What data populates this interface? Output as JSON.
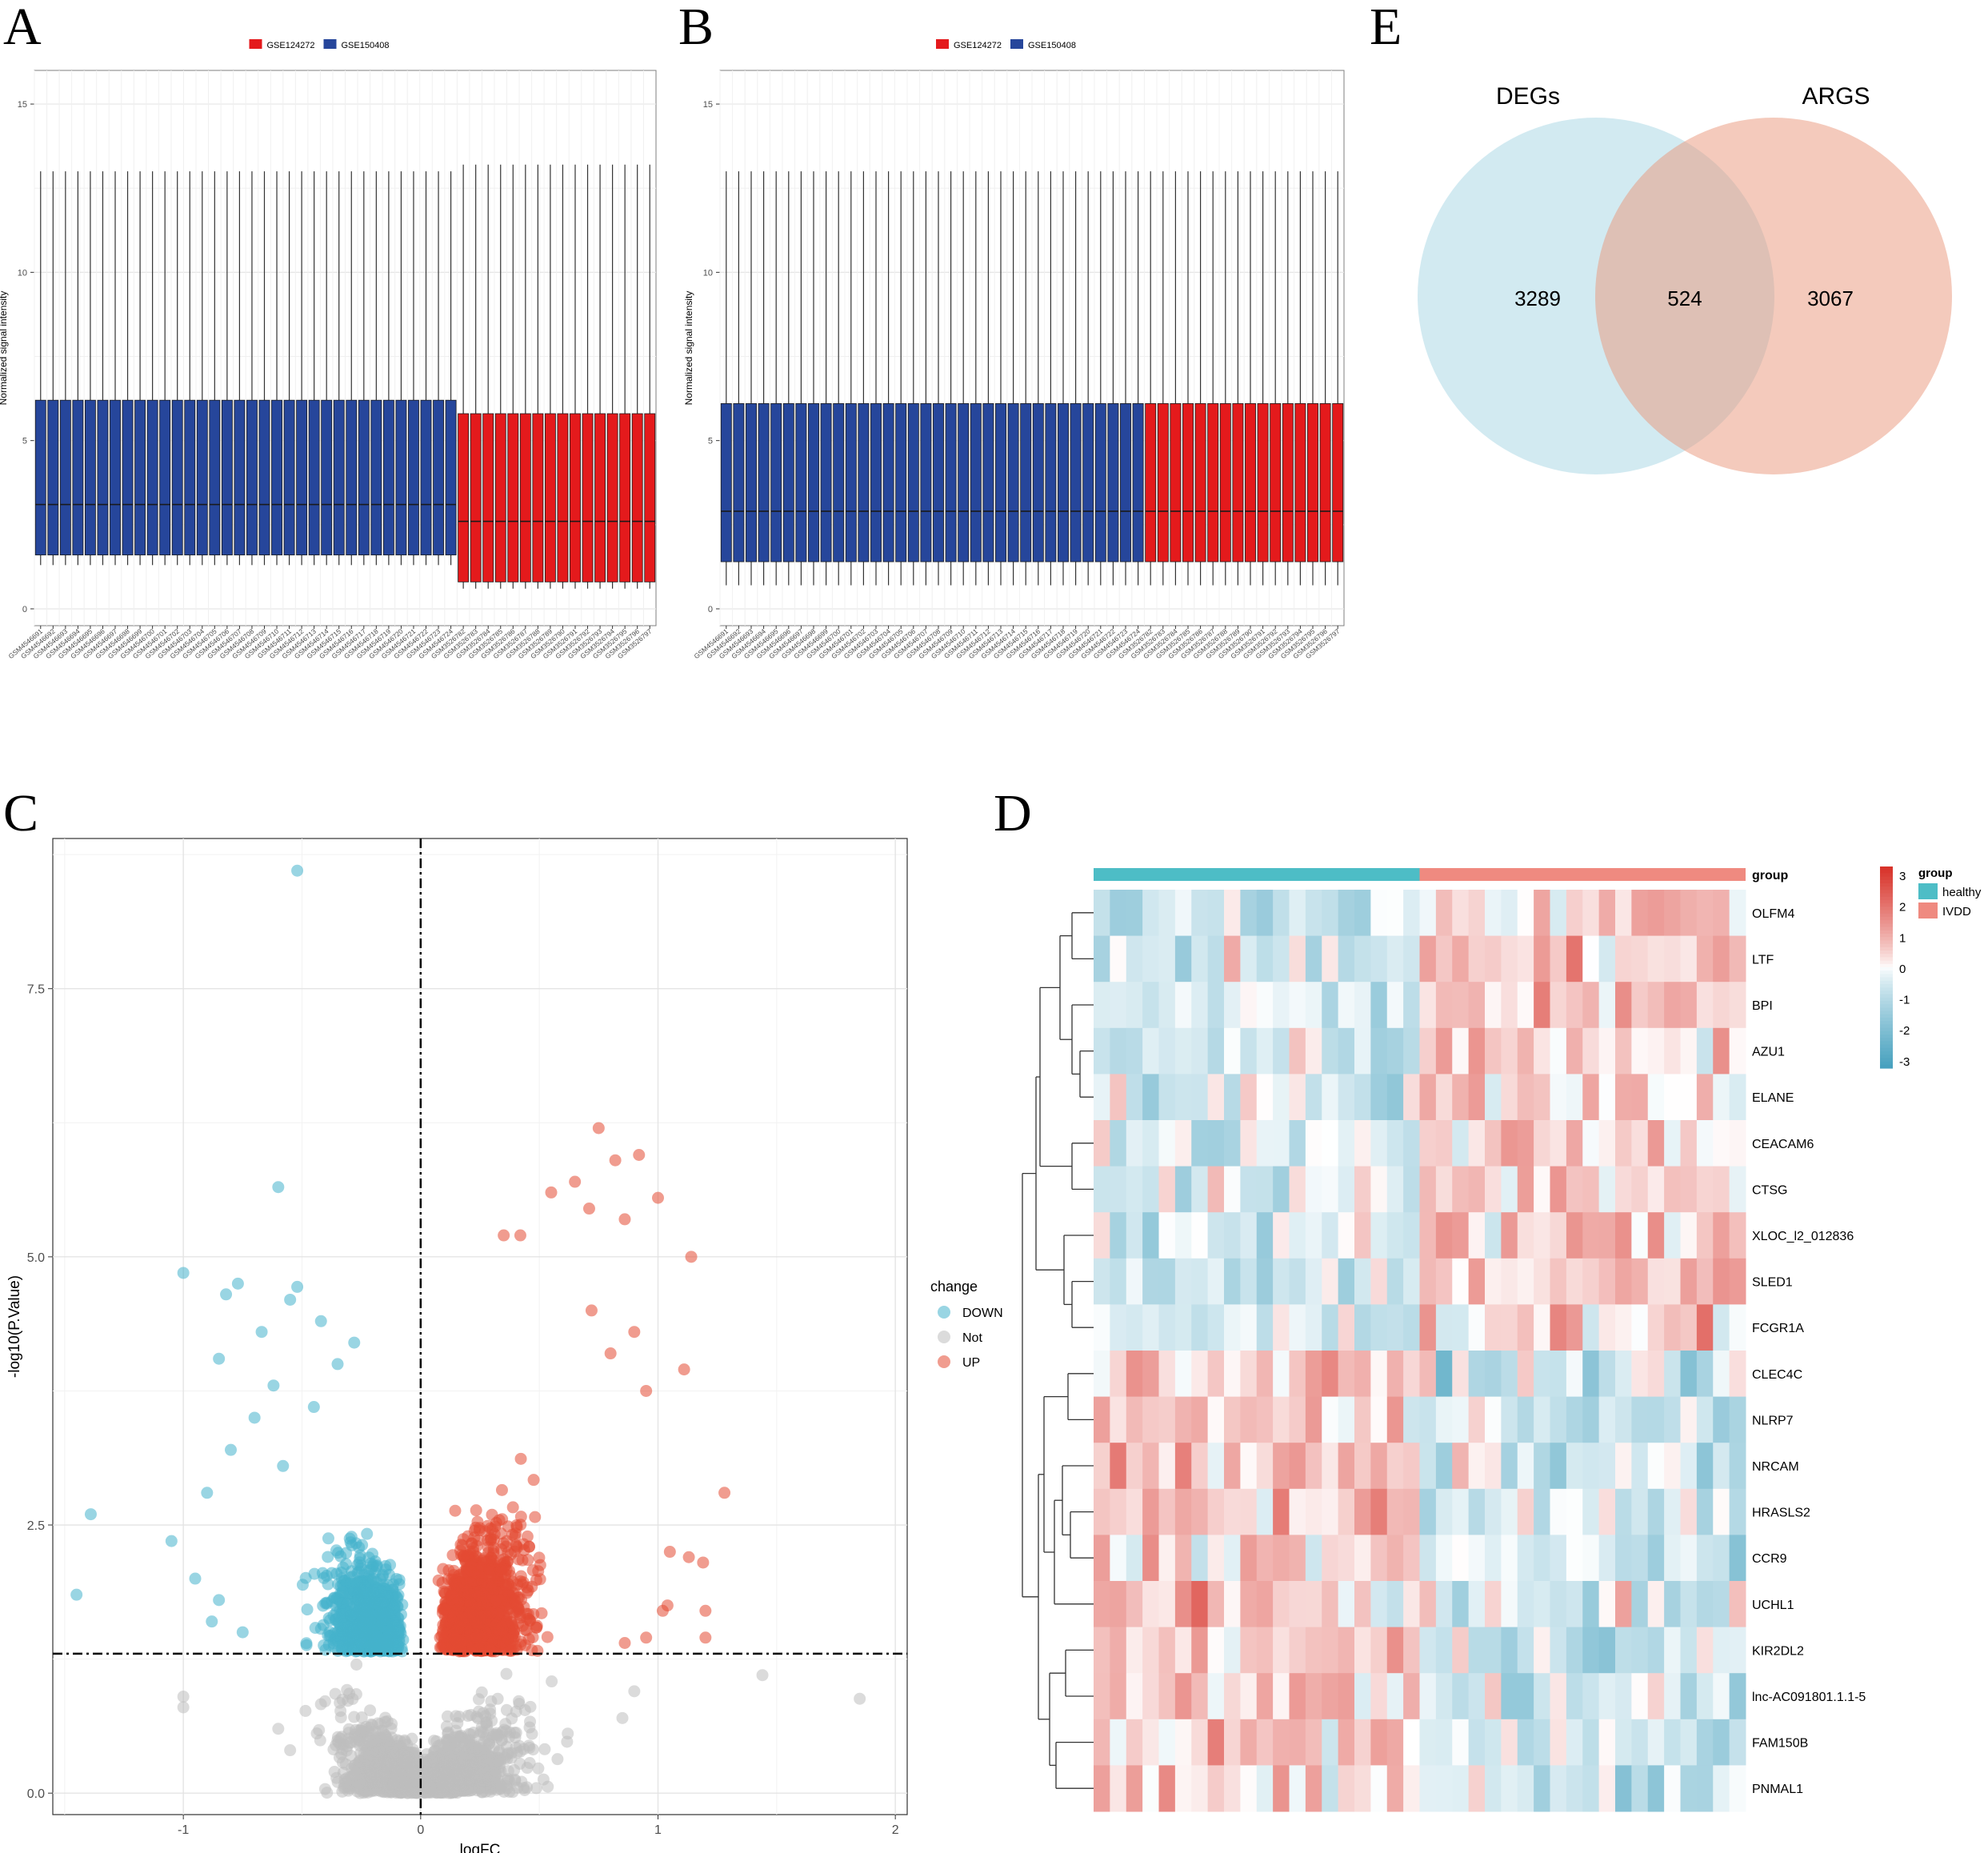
{
  "panels": {
    "A": "A",
    "B": "B",
    "C": "C",
    "D": "D",
    "E": "E"
  },
  "colors": {
    "gse124272": "#e41a1c",
    "gse150408": "#26469b",
    "down": "#45b3cc",
    "not": "#bebebe",
    "up": "#e34a33",
    "healthy": "#4dbdc6",
    "ivdd": "#ef8a80",
    "degs": "#4cb8c9",
    "args": "#e35a3f"
  },
  "chart_data": [
    {
      "id": "A",
      "type": "box",
      "title": "",
      "ylabel": "Normalized signal intensity",
      "ylim": [
        -0.5,
        16
      ],
      "yticks": [
        0,
        5,
        10,
        15
      ],
      "legend": [
        "GSE124272",
        "GSE150408"
      ],
      "legend_position": "top",
      "samples": [
        "GSM4546691",
        "GSM4546692",
        "GSM4546693",
        "GSM4546694",
        "GSM4546695",
        "GSM4546696",
        "GSM4546697",
        "GSM4546698",
        "GSM4546699",
        "GSM4546700",
        "GSM4546701",
        "GSM4546702",
        "GSM4546703",
        "GSM4546704",
        "GSM4546705",
        "GSM4546706",
        "GSM4546707",
        "GSM4546708",
        "GSM4546709",
        "GSM4546710",
        "GSM4546711",
        "GSM4546712",
        "GSM4546713",
        "GSM4546714",
        "GSM4546715",
        "GSM4546716",
        "GSM4546717",
        "GSM4546718",
        "GSM4546719",
        "GSM4546720",
        "GSM4546721",
        "GSM4546722",
        "GSM4546723",
        "GSM4546724",
        "GSM3526782",
        "GSM3526783",
        "GSM3526784",
        "GSM3526785",
        "GSM3526786",
        "GSM3526787",
        "GSM3526788",
        "GSM3526789",
        "GSM3526790",
        "GSM3526791",
        "GSM3526792",
        "GSM3526793",
        "GSM3526794",
        "GSM3526795",
        "GSM3526796",
        "GSM3526797"
      ],
      "groups": [
        {
          "name": "GSE150408",
          "count": 34,
          "min": 1.3,
          "q1": 1.6,
          "median": 3.1,
          "q3": 6.2,
          "max": 13.0
        },
        {
          "name": "GSE124272",
          "count": 16,
          "min": 0.6,
          "q1": 0.8,
          "median": 2.6,
          "q3": 5.8,
          "max": 13.2
        }
      ]
    },
    {
      "id": "B",
      "type": "box",
      "title": "",
      "ylabel": "Normalized signal intensity",
      "ylim": [
        -0.5,
        16
      ],
      "yticks": [
        0,
        5,
        10,
        15
      ],
      "legend": [
        "GSE124272",
        "GSE150408"
      ],
      "legend_position": "top",
      "samples": [
        "GSM4546691",
        "GSM4546692",
        "GSM4546693",
        "GSM4546694",
        "GSM4546695",
        "GSM4546696",
        "GSM4546697",
        "GSM4546698",
        "GSM4546699",
        "GSM4546700",
        "GSM4546701",
        "GSM4546702",
        "GSM4546703",
        "GSM4546704",
        "GSM4546705",
        "GSM4546706",
        "GSM4546707",
        "GSM4546708",
        "GSM4546709",
        "GSM4546710",
        "GSM4546711",
        "GSM4546712",
        "GSM4546713",
        "GSM4546714",
        "GSM4546715",
        "GSM4546716",
        "GSM4546717",
        "GSM4546718",
        "GSM4546719",
        "GSM4546720",
        "GSM4546721",
        "GSM4546722",
        "GSM4546723",
        "GSM4546724",
        "GSM3526782",
        "GSM3526783",
        "GSM3526784",
        "GSM3526785",
        "GSM3526786",
        "GSM3526787",
        "GSM3526788",
        "GSM3526789",
        "GSM3526790",
        "GSM3526791",
        "GSM3526792",
        "GSM3526793",
        "GSM3526794",
        "GSM3526795",
        "GSM3526796",
        "GSM3526797"
      ],
      "groups": [
        {
          "name": "GSE150408",
          "count": 34,
          "min": 0.7,
          "q1": 1.4,
          "median": 2.9,
          "q3": 6.1,
          "max": 13.0
        },
        {
          "name": "GSE124272",
          "count": 16,
          "min": 0.7,
          "q1": 1.4,
          "median": 2.9,
          "q3": 6.1,
          "max": 13.0
        }
      ]
    },
    {
      "id": "C",
      "type": "scatter",
      "title": "",
      "xlabel": "logFC",
      "ylabel": "-log10(P.Value)",
      "xlim": [
        -1.55,
        2.05
      ],
      "ylim": [
        -0.2,
        8.9
      ],
      "xticks": [
        -1,
        0,
        1,
        2
      ],
      "yticks": [
        0.0,
        2.5,
        5.0,
        7.5
      ],
      "ytick_labels": [
        "0.0",
        "2.5",
        "5.0",
        "7.5"
      ],
      "pvalue_cutoff": 1.3,
      "legend_title": "change",
      "legend_entries": [
        "DOWN",
        "Not",
        "UP"
      ],
      "legend_position": "right",
      "highlight_points": {
        "DOWN": [
          [
            -0.52,
            8.6
          ],
          [
            -0.6,
            5.65
          ],
          [
            -1.0,
            4.85
          ],
          [
            -0.77,
            4.75
          ],
          [
            -0.52,
            4.72
          ],
          [
            -0.82,
            4.65
          ],
          [
            -0.55,
            4.6
          ],
          [
            -0.42,
            4.4
          ],
          [
            -0.67,
            4.3
          ],
          [
            -0.28,
            4.2
          ],
          [
            -0.85,
            4.05
          ],
          [
            -1.39,
            2.6
          ],
          [
            -1.05,
            2.35
          ],
          [
            -1.45,
            1.85
          ],
          [
            -0.9,
            2.8
          ],
          [
            -0.95,
            2.0
          ],
          [
            -0.85,
            1.8
          ],
          [
            -0.75,
            1.5
          ],
          [
            -0.7,
            3.5
          ],
          [
            -0.62,
            3.8
          ],
          [
            -0.35,
            4.0
          ],
          [
            -0.8,
            3.2
          ],
          [
            -0.88,
            1.6
          ],
          [
            -0.58,
            3.05
          ],
          [
            -0.45,
            3.6
          ]
        ],
        "UP": [
          [
            0.75,
            6.2
          ],
          [
            0.92,
            5.95
          ],
          [
            0.82,
            5.9
          ],
          [
            1.0,
            5.55
          ],
          [
            0.65,
            5.7
          ],
          [
            0.55,
            5.6
          ],
          [
            0.71,
            5.45
          ],
          [
            0.86,
            5.35
          ],
          [
            0.35,
            5.2
          ],
          [
            0.42,
            5.2
          ],
          [
            1.14,
            5.0
          ],
          [
            1.11,
            3.95
          ],
          [
            0.9,
            4.3
          ],
          [
            0.95,
            3.75
          ],
          [
            1.28,
            2.8
          ],
          [
            1.05,
            2.25
          ],
          [
            1.13,
            2.2
          ],
          [
            1.19,
            2.15
          ],
          [
            1.02,
            1.7
          ],
          [
            1.04,
            1.75
          ],
          [
            1.2,
            1.7
          ],
          [
            0.86,
            1.4
          ],
          [
            0.95,
            1.45
          ],
          [
            1.2,
            1.45
          ],
          [
            0.72,
            4.5
          ],
          [
            0.8,
            4.1
          ]
        ],
        "Not": [
          [
            1.85,
            0.88
          ],
          [
            1.44,
            1.1
          ],
          [
            -1.0,
            0.9
          ],
          [
            -1.0,
            0.8
          ],
          [
            0.85,
            0.7
          ],
          [
            0.9,
            0.95
          ],
          [
            -0.6,
            0.6
          ],
          [
            -0.55,
            0.4
          ]
        ]
      },
      "bulk_regions": {
        "DOWN": {
          "x": [
            -0.75,
            -0.06
          ],
          "y": [
            1.3,
            3.4
          ]
        },
        "UP": {
          "x": [
            0.06,
            0.85
          ],
          "y": [
            1.3,
            4.2
          ]
        },
        "Not": {
          "x": [
            -0.7,
            0.85
          ],
          "y": [
            0.0,
            1.3
          ]
        }
      }
    },
    {
      "id": "D",
      "type": "heatmap",
      "title": "",
      "annotation_label": "group",
      "legend_title": "group",
      "legend_entries": [
        "healthy",
        "IVDD"
      ],
      "colorbar_ticks": [
        "3",
        "2",
        "1",
        "0",
        "-1",
        "-2",
        "-3"
      ],
      "value_range": [
        -3,
        3
      ],
      "n_columns": 40,
      "n_healthy": 20,
      "rows": [
        "OLFM4",
        "LTF",
        "BPI",
        "AZU1",
        "ELANE",
        "CEACAM6",
        "CTSG",
        "XLOC_l2_012836",
        "SLED1",
        "FCGR1A",
        "CLEC4C",
        "NLRP7",
        "NRCAM",
        "HRASLS2",
        "CCR9",
        "UCHL1",
        "KIR2DL2",
        "lnc-AC091801.1.1-5",
        "FAM150B",
        "PNMAL1"
      ]
    },
    {
      "id": "E",
      "type": "venn",
      "title": "",
      "sets": [
        {
          "name": "DEGs",
          "only": "3289"
        },
        {
          "name": "ARGS",
          "only": "3067"
        }
      ],
      "intersection": "524"
    }
  ]
}
